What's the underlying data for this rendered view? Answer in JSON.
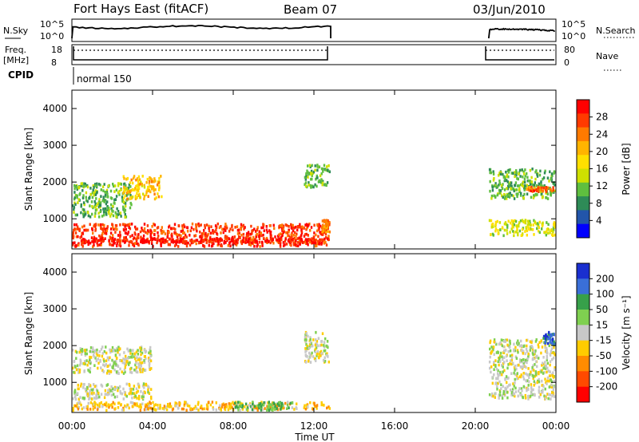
{
  "header": {
    "station": "Fort Hays East (fitACF)",
    "beam": "Beam 07",
    "date": "03/Jun/2010"
  },
  "top_panels": {
    "nsky_label": "N.Sky",
    "nsky_ticks": [
      "10^5",
      "10^0"
    ],
    "nsearch_label": "N.Search",
    "nsearch_ticks": [
      "10^5",
      "10^0"
    ],
    "freq_label": "Freq.",
    "freq_unit": "[MHz]",
    "freq_ticks": [
      "18",
      "8"
    ],
    "nave_label": "Nave",
    "nave_ticks": [
      "80",
      "0"
    ],
    "cpid_label": "CPID",
    "cpid_value": "normal 150"
  },
  "time_axis": {
    "label": "Time UT",
    "ticks": [
      "00:00",
      "04:00",
      "08:00",
      "12:00",
      "16:00",
      "20:00",
      "00:00"
    ]
  },
  "range_axis": {
    "label": "Slant Range [km]",
    "ticks": [
      "4000",
      "3000",
      "2000",
      "1000"
    ]
  },
  "power_colorbar": {
    "label": "Power [dB]",
    "ticks": [
      "28",
      "24",
      "20",
      "16",
      "12",
      "8",
      "4"
    ],
    "colors": [
      "#ff0000",
      "#ff3a00",
      "#ff7a00",
      "#ffb400",
      "#ffe000",
      "#cfe000",
      "#5fbf3f",
      "#2e8b57",
      "#2255aa",
      "#0000ff"
    ]
  },
  "velocity_colorbar": {
    "label": "Velocity [m s⁻¹]",
    "ticks": [
      "200",
      "100",
      "50",
      "15",
      "-15",
      "-50",
      "-100",
      "-200"
    ],
    "colors": [
      "#1a2fd0",
      "#3a6fd8",
      "#37a04a",
      "#7fd050",
      "#c8c8c8",
      "#ffcc00",
      "#ff8c00",
      "#ff4a00",
      "#ff0000"
    ]
  },
  "chart_data": {
    "type": "heatmap",
    "title": "Fort Hays East (fitACF) Beam 07 03/Jun/2010",
    "xlabel": "Time UT",
    "ylabel": "Slant Range [km]",
    "xlim": [
      "00:00",
      "24:00"
    ],
    "ylim": [
      180,
      4500
    ],
    "operation_periods_ut": [
      [
        "00:00",
        "12:50"
      ],
      [
        "20:40",
        "24:00"
      ]
    ],
    "panels": [
      {
        "name": "Power [dB]",
        "colorbar_range": [
          0,
          30
        ],
        "echo_regions": [
          {
            "time_ut": [
              "00:00",
              "12:50"
            ],
            "range_km": [
              200,
              900
            ],
            "value": 26
          },
          {
            "time_ut": [
              "00:00",
              "12:50"
            ],
            "range_km": [
              300,
              500
            ],
            "value": 28
          },
          {
            "time_ut": [
              "00:00",
              "03:00"
            ],
            "range_km": [
              1000,
              2000
            ],
            "value": 10
          },
          {
            "time_ut": [
              "02:30",
              "04:30"
            ],
            "range_km": [
              1500,
              2200
            ],
            "value": 18
          },
          {
            "time_ut": [
              "11:30",
              "12:50"
            ],
            "range_km": [
              1800,
              2500
            ],
            "value": 10
          },
          {
            "time_ut": [
              "12:20",
              "12:50"
            ],
            "range_km": [
              600,
              1000
            ],
            "value": 22
          },
          {
            "time_ut": [
              "20:40",
              "24:00"
            ],
            "range_km": [
              500,
              1000
            ],
            "value": 14
          },
          {
            "time_ut": [
              "20:40",
              "24:00"
            ],
            "range_km": [
              1500,
              2400
            ],
            "value": 10
          },
          {
            "time_ut": [
              "22:30",
              "24:00"
            ],
            "range_km": [
              1700,
              1900
            ],
            "value": 24
          }
        ]
      },
      {
        "name": "Velocity [m s-1]",
        "colorbar_range": [
          -250,
          250
        ],
        "echo_regions": [
          {
            "time_ut": [
              "00:00",
              "12:50"
            ],
            "range_km": [
              200,
              500
            ],
            "value": -60
          },
          {
            "time_ut": [
              "00:00",
              "04:00"
            ],
            "range_km": [
              500,
              1000
            ],
            "value": 0
          },
          {
            "time_ut": [
              "08:00",
              "11:00"
            ],
            "range_km": [
              200,
              500
            ],
            "value": 80
          },
          {
            "time_ut": [
              "00:00",
              "04:00"
            ],
            "range_km": [
              1200,
              2000
            ],
            "value": 0
          },
          {
            "time_ut": [
              "11:30",
              "12:50"
            ],
            "range_km": [
              1500,
              2400
            ],
            "value": 0
          },
          {
            "time_ut": [
              "20:40",
              "24:00"
            ],
            "range_km": [
              500,
              2200
            ],
            "value": 0
          },
          {
            "time_ut": [
              "23:20",
              "24:00"
            ],
            "range_km": [
              2000,
              2400
            ],
            "value": 180
          }
        ]
      }
    ]
  }
}
